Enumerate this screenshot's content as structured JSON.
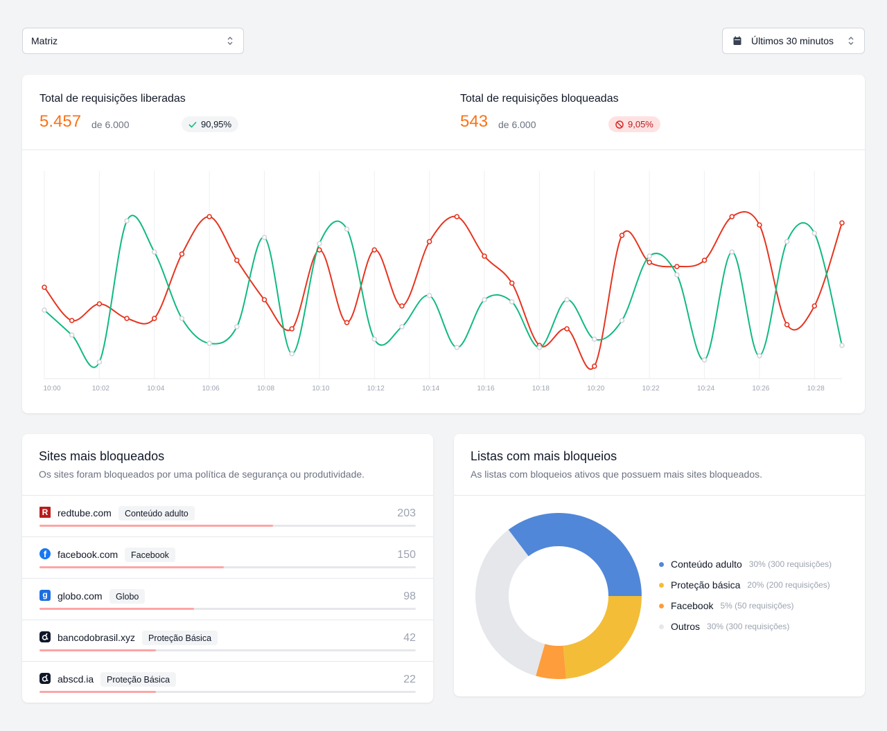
{
  "filters": {
    "location": "Matriz",
    "time_range": "Últimos 30 minutos"
  },
  "stats": {
    "allowed": {
      "title": "Total de requisições liberadas",
      "value": "5.457",
      "of": "de 6.000",
      "badge": "90,95%",
      "badge_icon": "check-icon"
    },
    "blocked": {
      "title": "Total de requisições bloqueadas",
      "value": "543",
      "of": "de 6.000",
      "badge": "9,05%",
      "badge_icon": "ban-icon"
    }
  },
  "chart_data": {
    "type": "line",
    "x": [
      "10:00",
      "10:01",
      "10:02",
      "10:03",
      "10:04",
      "10:05",
      "10:06",
      "10:07",
      "10:08",
      "10:09",
      "10:10",
      "10:11",
      "10:12",
      "10:13",
      "10:14",
      "10:15",
      "10:16",
      "10:17",
      "10:18",
      "10:19",
      "10:20",
      "10:21",
      "10:22",
      "10:23",
      "10:24",
      "10:25",
      "10:26",
      "10:27",
      "10:28",
      "10:29"
    ],
    "tick_labels": [
      "10:00",
      "10:02",
      "10:04",
      "10:06",
      "10:08",
      "10:10",
      "10:12",
      "10:14",
      "10:16",
      "10:18",
      "10:20",
      "10:22",
      "10:24",
      "10:26",
      "10:28"
    ],
    "series": [
      {
        "color": "#e5341f",
        "marker": "#e5341f",
        "values": [
          44,
          28,
          36,
          29,
          29,
          60,
          78,
          57,
          38,
          24,
          62,
          27,
          62,
          35,
          66,
          78,
          59,
          46,
          16,
          24,
          6,
          69,
          56,
          54,
          57,
          78,
          74,
          26,
          35,
          75
        ]
      },
      {
        "color": "#10b981",
        "marker": "#d1d5db",
        "values": [
          33,
          21,
          8,
          76,
          61,
          29,
          17,
          25,
          68,
          12,
          65,
          72,
          19,
          25,
          40,
          15,
          38,
          37,
          15,
          38,
          19,
          28,
          59,
          50,
          9,
          61,
          11,
          66,
          70,
          16
        ]
      }
    ],
    "ylim": [
      0,
      100
    ],
    "grid": "vertical",
    "smooth": true
  },
  "sites": {
    "title": "Sites mais bloqueados",
    "subtitle": "Os sites foram bloqueados por uma política de segurança ou produtividade.",
    "items": [
      {
        "name": "redtube.com",
        "tag": "Conteúdo adulto",
        "count": "203",
        "fill": 0.62,
        "icon": "redtube-icon"
      },
      {
        "name": "facebook.com",
        "tag": "Facebook",
        "count": "150",
        "fill": 0.49,
        "icon": "facebook-icon"
      },
      {
        "name": "globo.com",
        "tag": "Globo",
        "count": "98",
        "fill": 0.41,
        "icon": "globo-icon"
      },
      {
        "name": "bancodobrasil.xyz",
        "tag": "Proteção Básica",
        "count": "42",
        "fill": 0.31,
        "icon": "shield-app-icon"
      },
      {
        "name": "abscd.ia",
        "tag": "Proteção Básica",
        "count": "22",
        "fill": 0.31,
        "icon": "shield-app-icon"
      }
    ]
  },
  "lists": {
    "title": "Listas com mais bloqueios",
    "subtitle": "As listas com bloqueios ativos que possuem mais sites bloqueados.",
    "chart_data": {
      "type": "pie",
      "donut": true,
      "items": [
        {
          "label": "Conteúdo adulto",
          "detail": "30% (300 requisições)",
          "value": 30,
          "color": "#5187d8"
        },
        {
          "label": "Proteção básica",
          "detail": "20% (200 requisições)",
          "value": 20,
          "color": "#f3bd38"
        },
        {
          "label": "Facebook",
          "detail": "5% (50 requisições)",
          "value": 5,
          "color": "#fd9d3c"
        },
        {
          "label": "Outros",
          "detail": "30% (300 requisições)",
          "value": 30,
          "color": "#e5e7eb"
        }
      ]
    }
  }
}
